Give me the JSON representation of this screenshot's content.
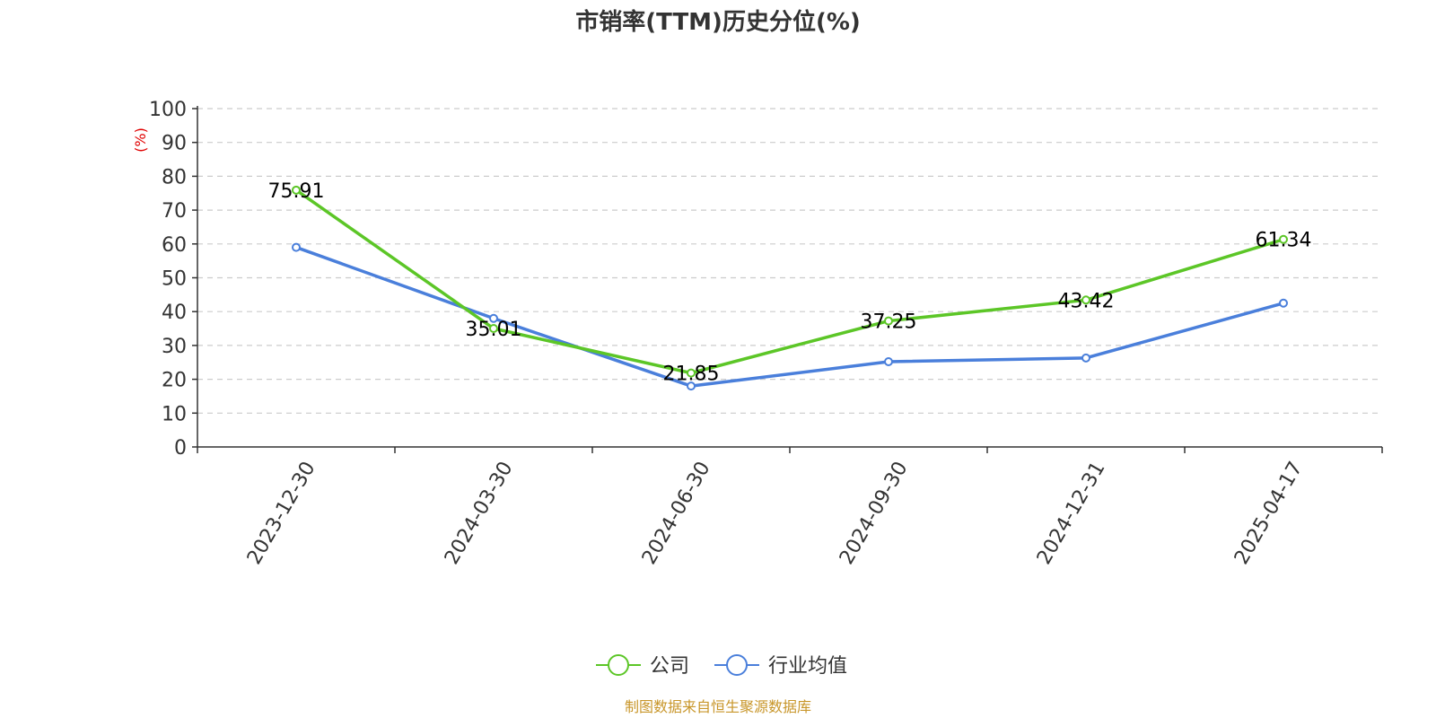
{
  "chart_data": {
    "type": "line",
    "title": "市销率(TTM)历史分位(%)",
    "ylabel": "(%)",
    "xlabel": "",
    "ylim": [
      0,
      100
    ],
    "yticks": [
      0,
      10,
      20,
      30,
      40,
      50,
      60,
      70,
      80,
      90,
      100
    ],
    "grid": true,
    "legend_placement": "bottom-center",
    "categories": [
      "2023-12-30",
      "2024-03-30",
      "2024-06-30",
      "2024-09-30",
      "2024-12-31",
      "2025-04-17"
    ],
    "series": [
      {
        "name": "公司",
        "color": "#5cc627",
        "values": [
          75.91,
          35.01,
          21.85,
          37.25,
          43.42,
          61.34
        ],
        "labels": [
          "75.91",
          "35.01",
          "21.85",
          "37.25",
          "43.42",
          "61.34"
        ]
      },
      {
        "name": "行业均值",
        "color": "#4a7fdb",
        "values": [
          59.0,
          38.0,
          18.0,
          25.2,
          26.3,
          42.5
        ]
      }
    ]
  },
  "ylabel_color": "#e00000",
  "footer": {
    "source": "制图数据来自恒生聚源数据库",
    "color": "#c8962a"
  }
}
